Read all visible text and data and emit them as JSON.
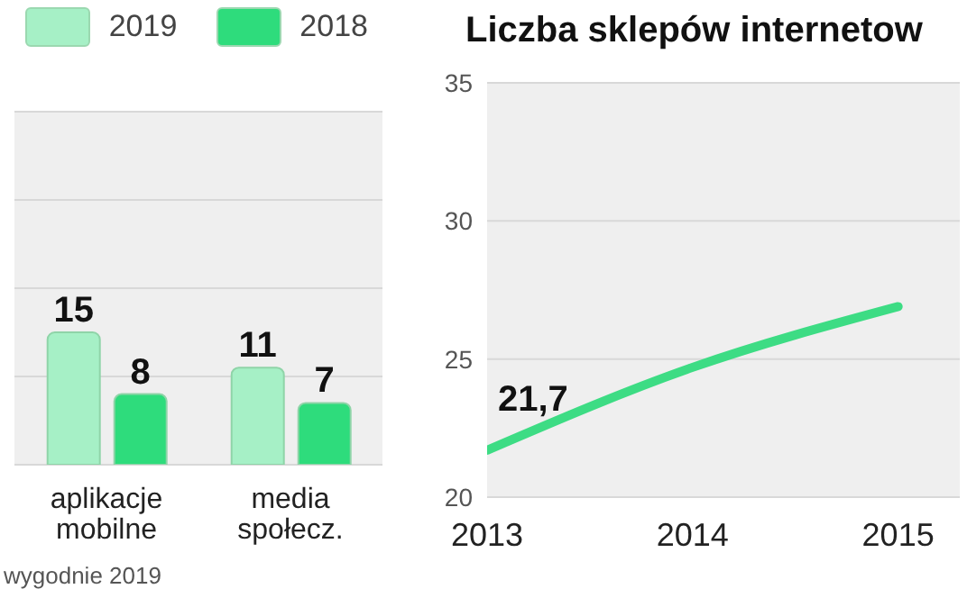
{
  "chart_data": [
    {
      "type": "bar",
      "categories": [
        "aplikacje mobilne",
        "media społecz."
      ],
      "series": [
        {
          "name": "2019",
          "color": "#a6f0c6",
          "values": [
            15,
            11
          ]
        },
        {
          "name": "2018",
          "color": "#2edc7c",
          "values": [
            8,
            7
          ]
        }
      ],
      "ylim": [
        0,
        40
      ],
      "yticks": [
        {
          "value": 0,
          "label": null
        },
        {
          "value": 10,
          "label": null
        },
        {
          "value": 20,
          "label": null
        },
        {
          "value": 30,
          "label": null
        },
        {
          "value": 40,
          "label": null
        }
      ],
      "grid": "y",
      "legend": "top",
      "data_labels": true,
      "tick_labels": "x",
      "annotations": [
        "wygodnie 2019"
      ]
    },
    {
      "type": "line",
      "title": "Liczba sklepów internetow",
      "x": [
        2013,
        2014,
        2015
      ],
      "series": [
        {
          "color": "#3ddc84",
          "values": [
            21.7,
            24.7,
            26.9
          ],
          "value_labels": [
            "21,7",
            null,
            null
          ]
        }
      ],
      "xlim": [
        2013,
        2015.3
      ],
      "xticks": [
        2013,
        2014,
        2015
      ],
      "ylim": [
        20,
        35
      ],
      "yticks": [
        20,
        25,
        30,
        35
      ],
      "grid": "y",
      "marker": "none",
      "line_style": "solid"
    }
  ]
}
